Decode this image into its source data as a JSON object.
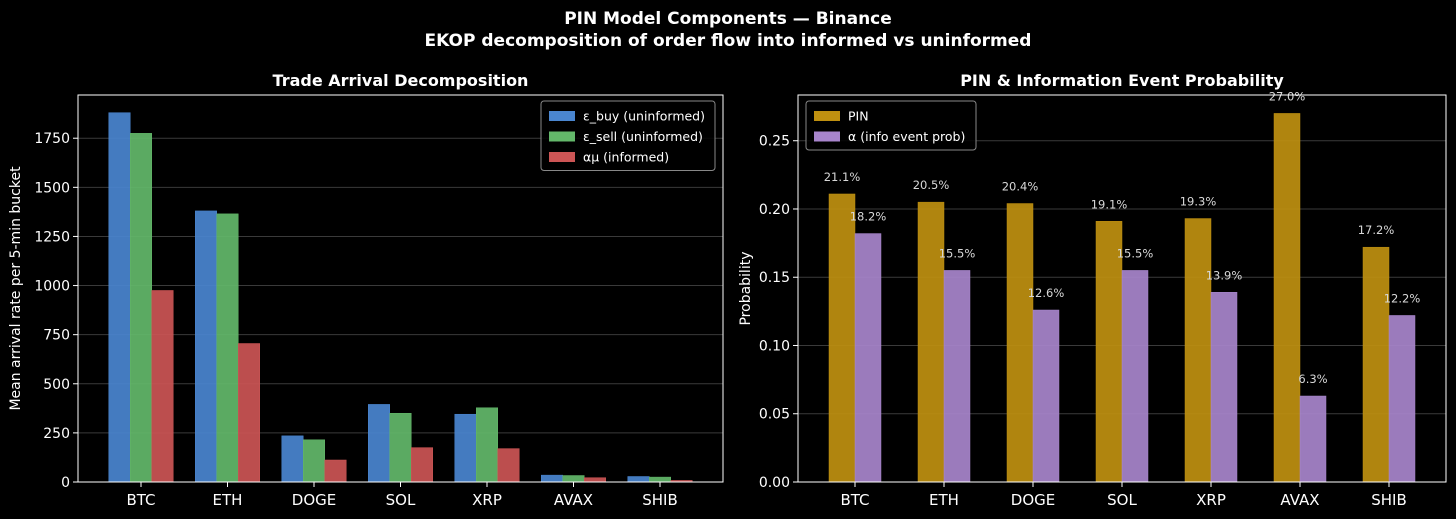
{
  "figure": {
    "title": "PIN Model Components — Binance",
    "subtitle": "EKOP decomposition of order flow into informed vs uninformed"
  },
  "colors": {
    "background": "#000000",
    "buy": "#4a86d0",
    "sell": "#63b86a",
    "informed": "#cc5555",
    "pin": "#bf9010",
    "alpha": "#a885cc",
    "grid": "#3a3a3a",
    "axis": "#ffffff"
  },
  "chart_data": [
    {
      "type": "bar",
      "title": "Trade Arrival Decomposition",
      "xlabel": "",
      "ylabel": "Mean arrival rate per 5-min bucket",
      "categories": [
        "BTC",
        "ETH",
        "DOGE",
        "SOL",
        "XRP",
        "AVAX",
        "SHIB"
      ],
      "ylim": [
        0,
        1970
      ],
      "yticks": [
        0,
        250,
        500,
        750,
        1000,
        1250,
        1500,
        1750
      ],
      "grid": true,
      "legend_position": "top-right",
      "series": [
        {
          "name": "ε_buy (uninformed)",
          "color_key": "buy",
          "values": [
            1880,
            1380,
            235,
            395,
            345,
            35,
            28
          ]
        },
        {
          "name": "ε_sell (uninformed)",
          "color_key": "sell",
          "values": [
            1775,
            1365,
            215,
            350,
            378,
            33,
            25
          ]
        },
        {
          "name": "αμ (informed)",
          "color_key": "informed",
          "values": [
            975,
            705,
            112,
            175,
            170,
            22,
            8
          ]
        }
      ]
    },
    {
      "type": "bar",
      "title": "PIN & Information Event Probability",
      "xlabel": "",
      "ylabel": "Probability",
      "categories": [
        "BTC",
        "ETH",
        "DOGE",
        "SOL",
        "XRP",
        "AVAX",
        "SHIB"
      ],
      "ylim": [
        0,
        0.2835
      ],
      "yticks": [
        0.0,
        0.05,
        0.1,
        0.15,
        0.2,
        0.25
      ],
      "ytick_labels": [
        "0.00",
        "0.05",
        "0.10",
        "0.15",
        "0.20",
        "0.25"
      ],
      "grid": true,
      "legend_position": "top-left",
      "series": [
        {
          "name": "PIN",
          "color_key": "pin",
          "values": [
            0.211,
            0.205,
            0.204,
            0.191,
            0.193,
            0.27,
            0.172
          ],
          "labels": [
            "21.1%",
            "20.5%",
            "20.4%",
            "19.1%",
            "19.3%",
            "27.0%",
            "17.2%"
          ]
        },
        {
          "name": "α (info event prob)",
          "color_key": "alpha",
          "values": [
            0.182,
            0.155,
            0.126,
            0.155,
            0.139,
            0.063,
            0.122
          ],
          "labels": [
            "18.2%",
            "15.5%",
            "12.6%",
            "15.5%",
            "13.9%",
            "6.3%",
            "12.2%"
          ]
        }
      ]
    }
  ]
}
